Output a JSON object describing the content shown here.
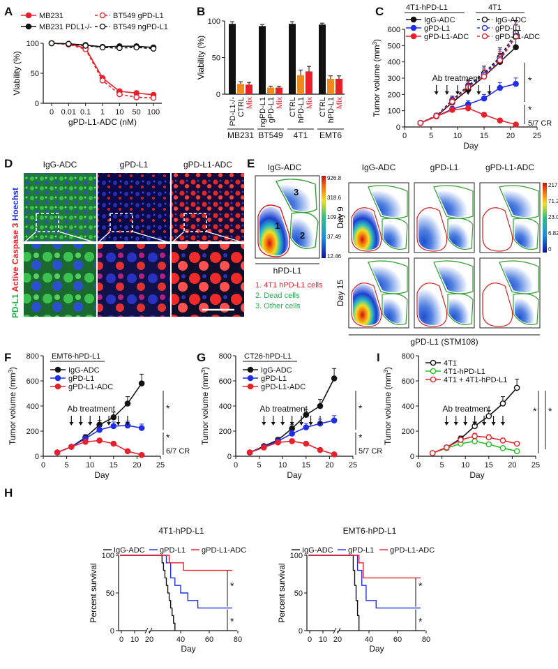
{
  "panels": {
    "A": {
      "label": "A",
      "legend": [
        "MB231",
        "BT549 gPD-L1",
        "MB231 PDL1-/-",
        "BT549 ngPD-L1"
      ],
      "chart_data": {
        "type": "line",
        "xlabel": "gPD-L1-ADC (nM)",
        "ylabel": "Viability (%)",
        "x": [
          "0",
          "0.01",
          "0.1",
          "1",
          "10",
          "50",
          "100"
        ],
        "ylim": [
          0,
          100
        ],
        "yticks": [
          0,
          50,
          100
        ],
        "series": [
          {
            "name": "MB231",
            "color": "#e8202a",
            "dash": false,
            "marker": "filled",
            "values": [
              100,
              99,
              92,
              42,
              20,
              17,
              14
            ]
          },
          {
            "name": "BT549 gPD-L1",
            "color": "#e8202a",
            "dash": true,
            "marker": "open",
            "values": [
              100,
              98,
              90,
              38,
              15,
              10,
              9
            ]
          },
          {
            "name": "MB231 PDL1-/-",
            "color": "#111111",
            "dash": false,
            "marker": "filled",
            "values": [
              100,
              99,
              97,
              94,
              95,
              95,
              93
            ]
          },
          {
            "name": "BT549 ngPD-L1",
            "color": "#111111",
            "dash": true,
            "marker": "open",
            "values": [
              100,
              99,
              96,
              93,
              92,
              93,
              91
            ]
          }
        ]
      }
    },
    "B": {
      "label": "B",
      "chart_data": {
        "type": "bar",
        "ylabel": "Viability (%)",
        "ylim": [
          0,
          100
        ],
        "yticks": [
          0,
          50,
          100
        ],
        "groups": [
          "MB231",
          "BT549",
          "4T1",
          "EMT6"
        ],
        "bar_labels": [
          [
            "PD-L1-/-",
            "CTRL",
            "Mix"
          ],
          [
            "ngPD-L1",
            "gPD-L1",
            "Mix"
          ],
          [
            "CTRL",
            "hPD-L1",
            "Mix"
          ],
          [
            "CTRL",
            "hPD-L1",
            "Mix"
          ]
        ],
        "values": [
          [
            96,
            14,
            13
          ],
          [
            93,
            9,
            9
          ],
          [
            96,
            26,
            31
          ],
          [
            95,
            21,
            21
          ]
        ],
        "errors": [
          [
            3,
            3,
            3
          ],
          [
            2,
            2,
            2
          ],
          [
            3,
            7,
            7
          ],
          [
            2,
            4,
            4
          ]
        ],
        "colors": [
          "#111111",
          "#f08a1c",
          "#e8202a"
        ]
      }
    },
    "C": {
      "label": "C",
      "group_titles": [
        "4T1-hPD-L1",
        "4T1"
      ],
      "legend": [
        "IgG-ADC",
        "gPD-L1",
        "gPD-L1-ADC",
        "IgG-ADC",
        "gPD-L1",
        "gPD-L1-ADC"
      ],
      "annotation": "Ab treatment",
      "stars": [
        "*",
        "*"
      ],
      "cr": "5/7 CR",
      "chart_data": {
        "type": "line",
        "xlabel": "Day",
        "ylabel": "Tumor volume (mm3)",
        "xlim": [
          0,
          25
        ],
        "xticks": [
          0,
          5,
          10,
          15,
          20,
          25
        ],
        "ylim": [
          0,
          600
        ],
        "yticks": [
          0,
          100,
          200,
          300,
          400,
          500,
          600
        ],
        "x": [
          3,
          6,
          9,
          12,
          15,
          18,
          21
        ],
        "arrows": [
          6,
          8,
          10,
          12,
          14,
          16
        ],
        "series": [
          {
            "name": "IgG-ADC",
            "color": "#111111",
            "dash": false,
            "marker": "filled",
            "values": [
              25,
              65,
              150,
              230,
              310,
              400,
              490
            ]
          },
          {
            "name": "gPD-L1",
            "color": "#1f2ee6",
            "dash": false,
            "marker": "filled",
            "values": [
              25,
              65,
              110,
              140,
              175,
              240,
              265
            ]
          },
          {
            "name": "gPD-L1-ADC",
            "color": "#e8202a",
            "dash": false,
            "marker": "filled",
            "values": [
              25,
              65,
              105,
              115,
              75,
              40,
              15
            ]
          },
          {
            "name": "IgG-ADC",
            "color": "#111111",
            "dash": true,
            "marker": "open",
            "values": [
              25,
              70,
              165,
              255,
              330,
              430,
              580
            ]
          },
          {
            "name": "gPD-L1",
            "color": "#1f2ee6",
            "dash": true,
            "marker": "open",
            "values": [
              25,
              70,
              160,
              250,
              320,
              420,
              560
            ]
          },
          {
            "name": "gPD-L1-ADC",
            "color": "#e8202a",
            "dash": true,
            "marker": "open",
            "values": [
              25,
              68,
              155,
              245,
              310,
              410,
              555
            ]
          }
        ]
      }
    },
    "D": {
      "label": "D",
      "col_labels": [
        "IgG-ADC",
        "gPD-L1",
        "gPD-L1-ADC"
      ],
      "side_label": [
        "PD-L1",
        "Active Caspase 3",
        "Hoechst"
      ]
    },
    "E": {
      "label": "E",
      "inset_title": "IgG-ADC",
      "inset_colorbar": [
        "926.8",
        "318.6",
        "109.4",
        "37.49",
        "12.46"
      ],
      "inset_xlabel": "hPD-L1",
      "regions": [
        "1",
        "2",
        "3"
      ],
      "region_legend": [
        "1. 4T1 hPD-L1 cells",
        "2. Dead cells",
        "3. Other cells"
      ],
      "col_labels": [
        "IgG-ADC",
        "gPD-L1",
        "gPD-L1-ADC"
      ],
      "row_labels": [
        "Day 9",
        "Day 15"
      ],
      "colorbar": [
        "217.9",
        "71.25",
        "23.07",
        "6.821",
        "0"
      ],
      "xlabel": "gPD-L1 (STM108)"
    },
    "F": {
      "label": "F",
      "title": "EMT6-hPD-L1",
      "legend": [
        "IgG-ADC",
        "gPD-L1",
        "gPD-L1-ADC"
      ],
      "annotation": "Ab treatment",
      "stars": [
        "*",
        "*"
      ],
      "cr": "6/7 CR",
      "chart_data": {
        "type": "line",
        "xlabel": "Day",
        "ylabel": "Tumor volume (mm3)",
        "xlim": [
          0,
          25
        ],
        "xticks": [
          0,
          5,
          10,
          15,
          20,
          25
        ],
        "ylim": [
          0,
          800
        ],
        "yticks": [
          0,
          200,
          400,
          600,
          800
        ],
        "x": [
          3,
          6,
          9,
          12,
          15,
          18,
          21
        ],
        "arrows": [
          6,
          8,
          10,
          12,
          14,
          16,
          18
        ],
        "series": [
          {
            "name": "IgG-ADC",
            "color": "#111111",
            "dash": false,
            "marker": "filled",
            "values": [
              30,
              75,
              150,
              250,
              310,
              420,
              580
            ]
          },
          {
            "name": "gPD-L1",
            "color": "#1f2ee6",
            "dash": false,
            "marker": "filled",
            "values": [
              30,
              75,
              140,
              210,
              240,
              245,
              225
            ]
          },
          {
            "name": "gPD-L1-ADC",
            "color": "#e8202a",
            "dash": false,
            "marker": "filled",
            "values": [
              30,
              75,
              115,
              125,
              100,
              40,
              10
            ]
          }
        ]
      }
    },
    "G": {
      "label": "G",
      "title": "CT26-hPD-L1",
      "legend": [
        "IgG-ADC",
        "gPD-L1",
        "gPD-L1-ADC"
      ],
      "annotation": "Ab treatment",
      "stars": [
        "*",
        "*"
      ],
      "cr": "5/7 CR",
      "chart_data": {
        "type": "line",
        "xlabel": "Day",
        "ylabel": "Tumor volume (mm3)",
        "xlim": [
          0,
          25
        ],
        "xticks": [
          0,
          5,
          10,
          15,
          20,
          25
        ],
        "ylim": [
          0,
          800
        ],
        "yticks": [
          0,
          200,
          400,
          600,
          800
        ],
        "x": [
          3,
          6,
          9,
          12,
          15,
          18,
          21
        ],
        "arrows": [
          6,
          8,
          10,
          12,
          14,
          16,
          18
        ],
        "series": [
          {
            "name": "IgG-ADC",
            "color": "#111111",
            "dash": false,
            "marker": "filled",
            "values": [
              30,
              80,
              130,
              220,
              330,
              400,
              620
            ]
          },
          {
            "name": "gPD-L1",
            "color": "#1f2ee6",
            "dash": false,
            "marker": "filled",
            "values": [
              30,
              75,
              120,
              180,
              230,
              260,
              285
            ]
          },
          {
            "name": "gPD-L1-ADC",
            "color": "#e8202a",
            "dash": false,
            "marker": "filled",
            "values": [
              30,
              70,
              110,
              120,
              100,
              50,
              15
            ]
          }
        ]
      }
    },
    "I": {
      "label": "I",
      "legend": [
        "4T1",
        "4T1-hPD-L1",
        "4T1 + 4T1-hPD-L1"
      ],
      "annotation": "Ab treatment",
      "stars": [
        "*",
        "*"
      ],
      "chart_data": {
        "type": "line",
        "xlabel": "Day",
        "ylabel": "Tumor volume (mm3)",
        "xlim": [
          0,
          25
        ],
        "xticks": [
          0,
          5,
          10,
          15,
          20,
          25
        ],
        "ylim": [
          0,
          800
        ],
        "yticks": [
          0,
          200,
          400,
          600,
          800
        ],
        "x": [
          3,
          6,
          9,
          12,
          15,
          18,
          21
        ],
        "arrows": [
          6,
          8,
          10,
          12,
          14,
          16,
          18
        ],
        "series": [
          {
            "name": "4T1",
            "color": "#111111",
            "dash": false,
            "marker": "open",
            "values": [
              25,
              70,
              140,
              240,
              320,
              420,
              545
            ]
          },
          {
            "name": "4T1-hPD-L1",
            "color": "#22c022",
            "dash": false,
            "marker": "open",
            "values": [
              25,
              65,
              100,
              120,
              95,
              65,
              40
            ]
          },
          {
            "name": "4T1 + 4T1-hPD-L1",
            "color": "#e8202a",
            "dash": false,
            "marker": "open",
            "values": [
              25,
              70,
              130,
              160,
              150,
              125,
              100
            ]
          }
        ]
      }
    },
    "H": {
      "label": "H",
      "plots": [
        {
          "title": "4T1-hPD-L1",
          "legend": [
            "IgG-ADC",
            "gPD-L1",
            "gPD-L1-ADC"
          ],
          "stars": [
            "*",
            "*"
          ],
          "chart_data": {
            "type": "line",
            "xlabel": "Day",
            "ylabel": "Percent survival",
            "xticks": [
              "0",
              "10",
              "20",
              "40",
              "60",
              "80"
            ],
            "yticks": [
              0,
              50,
              100
            ],
            "series": [
              {
                "name": "IgG-ADC",
                "color": "#111111",
                "steps": [
                  [
                    0,
                    100
                  ],
                  [
                    26,
                    100
                  ],
                  [
                    27,
                    90
                  ],
                  [
                    28,
                    80
                  ],
                  [
                    29,
                    70
                  ],
                  [
                    30,
                    60
                  ],
                  [
                    31,
                    50
                  ],
                  [
                    32,
                    40
                  ],
                  [
                    33,
                    30
                  ],
                  [
                    34,
                    20
                  ],
                  [
                    35,
                    10
                  ],
                  [
                    36,
                    0
                  ]
                ]
              },
              {
                "name": "gPD-L1",
                "color": "#1f2ee6",
                "steps": [
                  [
                    0,
                    100
                  ],
                  [
                    28,
                    100
                  ],
                  [
                    30,
                    90
                  ],
                  [
                    33,
                    70
                  ],
                  [
                    36,
                    60
                  ],
                  [
                    40,
                    50
                  ],
                  [
                    45,
                    40
                  ],
                  [
                    52,
                    30
                  ],
                  [
                    76,
                    30
                  ]
                ]
              },
              {
                "name": "gPD-L1-ADC",
                "color": "#e8202a",
                "steps": [
                  [
                    0,
                    100
                  ],
                  [
                    30,
                    100
                  ],
                  [
                    32,
                    90
                  ],
                  [
                    42,
                    80
                  ],
                  [
                    76,
                    80
                  ]
                ]
              }
            ]
          }
        },
        {
          "title": "EMT6-hPD-L1",
          "legend": [
            "IgG-ADC",
            "gPD-L1",
            "gPD-L1-ADC"
          ],
          "stars": [
            "*",
            "*"
          ],
          "chart_data": {
            "type": "line",
            "xlabel": "Day",
            "ylabel": "Percent survival",
            "xticks": [
              "0",
              "10",
              "20",
              "40",
              "60",
              "80"
            ],
            "yticks": [
              0,
              50,
              100
            ],
            "series": [
              {
                "name": "IgG-ADC",
                "color": "#111111",
                "steps": [
                  [
                    0,
                    100
                  ],
                  [
                    28,
                    100
                  ],
                  [
                    29,
                    80
                  ],
                  [
                    30,
                    60
                  ],
                  [
                    31,
                    40
                  ],
                  [
                    32,
                    20
                  ],
                  [
                    33,
                    0
                  ]
                ]
              },
              {
                "name": "gPD-L1",
                "color": "#1f2ee6",
                "steps": [
                  [
                    0,
                    100
                  ],
                  [
                    30,
                    100
                  ],
                  [
                    32,
                    80
                  ],
                  [
                    35,
                    60
                  ],
                  [
                    38,
                    40
                  ],
                  [
                    45,
                    30
                  ],
                  [
                    76,
                    30
                  ]
                ]
              },
              {
                "name": "gPD-L1-ADC",
                "color": "#e8202a",
                "steps": [
                  [
                    0,
                    100
                  ],
                  [
                    31,
                    100
                  ],
                  [
                    33,
                    90
                  ],
                  [
                    36,
                    70
                  ],
                  [
                    76,
                    70
                  ]
                ]
              }
            ]
          }
        }
      ]
    }
  }
}
